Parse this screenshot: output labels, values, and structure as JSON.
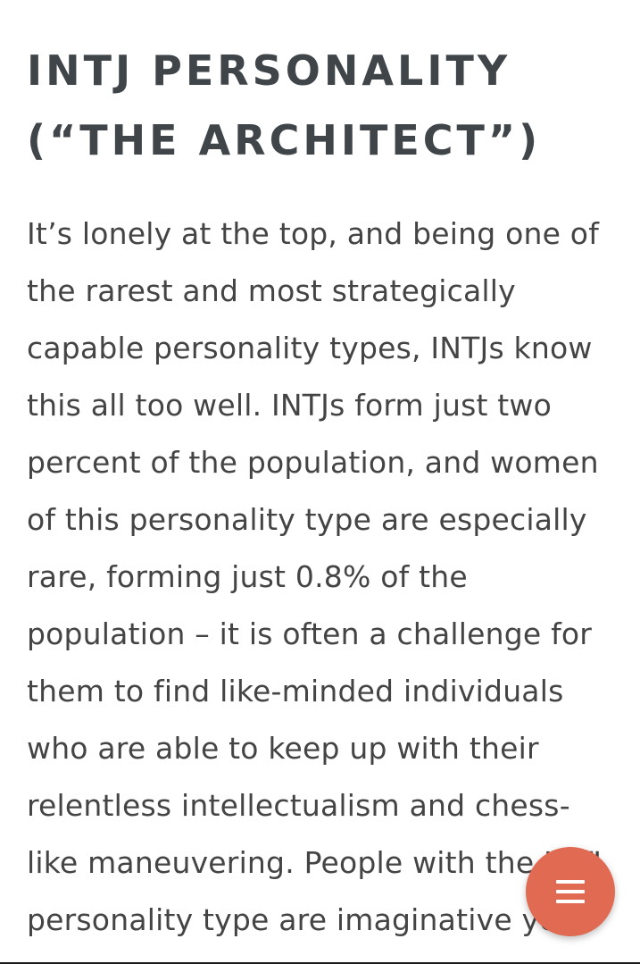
{
  "article": {
    "title": "INTJ PERSONALITY\n(“THE ARCHITECT”)",
    "paragraph": "It’s lonely at the top, and being one of the rarest and most strategically capable personality types, INTJs know this all too well. INTJs form just two percent of the population, and women of this personality type are especially rare, forming just 0.8% of the population – it is often a challenge for them to find like-minded individuals who are able to keep up with their relentless intellectualism and chess-like maneuvering. People with the INTJ personality type are imaginative yet"
  },
  "fab": {
    "icon": "hamburger-menu-icon",
    "color": "#e06a52"
  },
  "colors": {
    "title": "#3f4548",
    "text": "#444444",
    "background": "#ffffff"
  }
}
